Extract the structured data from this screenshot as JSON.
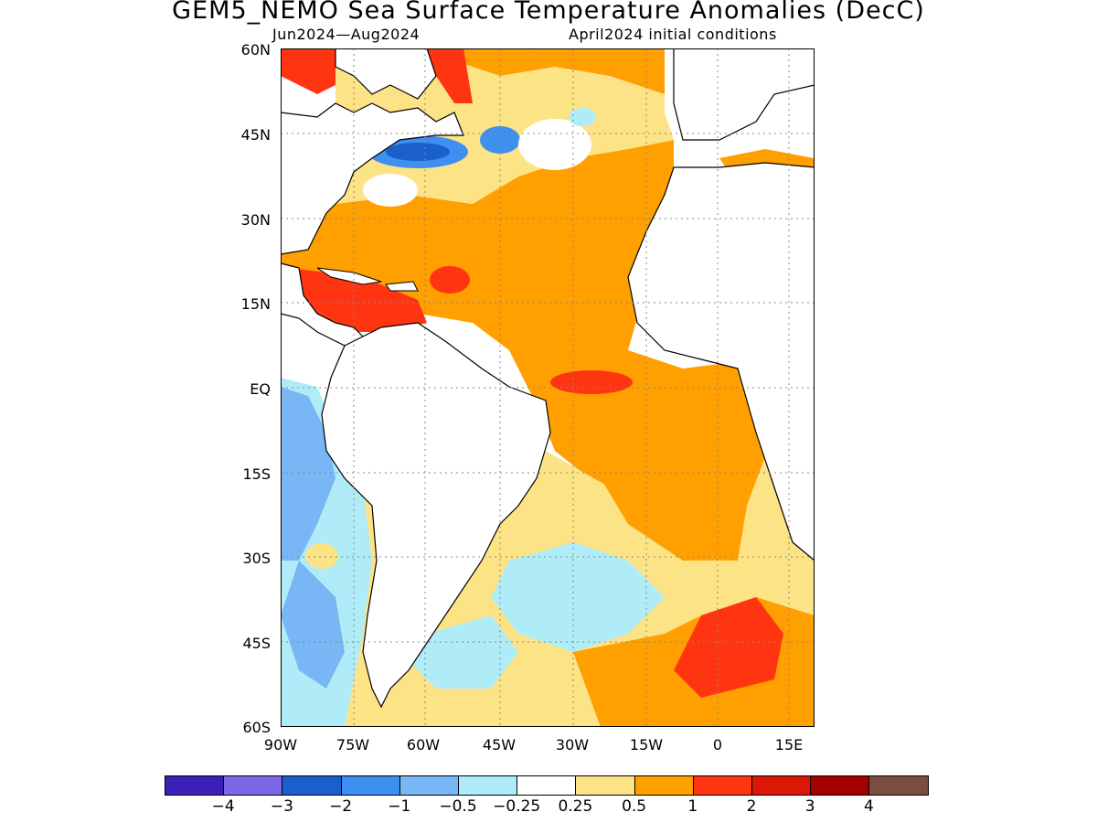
{
  "title": "GEM5_NEMO Sea Surface Temperature Anomalies (DecC)",
  "period": "Jun2024—Aug2024",
  "init": "April2024 initial conditions",
  "lat_labels": [
    "60N",
    "45N",
    "30N",
    "15N",
    "EQ",
    "15S",
    "30S",
    "45S",
    "60S"
  ],
  "lon_labels": [
    "90W",
    "75W",
    "60W",
    "45W",
    "30W",
    "15W",
    "0",
    "15E"
  ],
  "colorbar": {
    "colors": [
      "#3c1fb6",
      "#7b67e8",
      "#1a5fcc",
      "#3d8ff0",
      "#79b6f5",
      "#b0ecf7",
      "#ffffff",
      "#fce386",
      "#ff9f00",
      "#ff3512",
      "#dd1707",
      "#a30000",
      "#7a4d40"
    ],
    "labels": [
      "−4",
      "−3",
      "−2",
      "−1",
      "−0.5",
      "−0.25",
      "0.25",
      "0.5",
      "1",
      "2",
      "3",
      "4"
    ]
  }
}
